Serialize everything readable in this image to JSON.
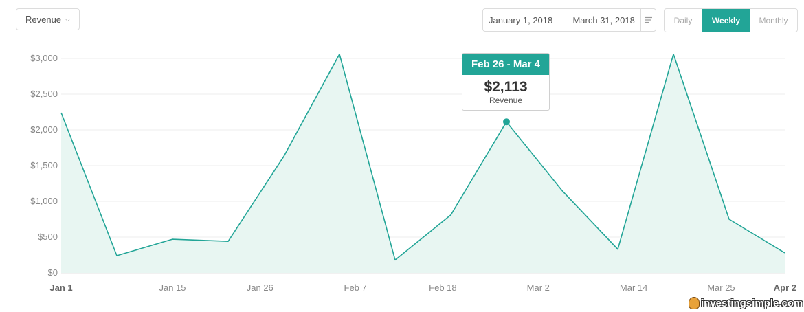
{
  "controls": {
    "metric_label": "Revenue",
    "date_start": "January 1, 2018",
    "date_separator": "–",
    "date_end": "March 31, 2018",
    "granularity": [
      "Daily",
      "Weekly",
      "Monthly"
    ],
    "selected_granularity": "Weekly"
  },
  "tooltip": {
    "period": "Feb 26 - Mar 4",
    "value": "$2,113",
    "label": "Revenue"
  },
  "watermark": "investingsimple.com",
  "colors": {
    "accent": "#22a597",
    "area_fill": "#e8f6f2",
    "grid": "#eeeeee",
    "axis_text": "#888888"
  },
  "chart_data": {
    "type": "area",
    "ylim": [
      0,
      3000
    ],
    "yticks": [
      0,
      500,
      1000,
      1500,
      2000,
      2500,
      3000
    ],
    "ytick_labels": [
      "$0",
      "$500",
      "$1,000",
      "$1,500",
      "$2,000",
      "$2,500",
      "$3,000"
    ],
    "xticks": [
      {
        "label": "Jan 1",
        "day": 0,
        "bold": true
      },
      {
        "label": "Jan 15",
        "day": 14,
        "bold": false
      },
      {
        "label": "Jan 26",
        "day": 25,
        "bold": false
      },
      {
        "label": "Feb 7",
        "day": 37,
        "bold": false
      },
      {
        "label": "Feb 18",
        "day": 48,
        "bold": false
      },
      {
        "label": "Mar 2",
        "day": 60,
        "bold": false
      },
      {
        "label": "Mar 14",
        "day": 72,
        "bold": false
      },
      {
        "label": "Mar 25",
        "day": 83,
        "bold": false
      },
      {
        "label": "Apr 2",
        "day": 91,
        "bold": true
      }
    ],
    "series": [
      {
        "x": [
          0,
          7,
          14,
          21,
          28,
          35,
          42,
          49,
          56,
          63,
          70,
          77,
          84,
          91
        ],
        "values": [
          2240,
          240,
          470,
          440,
          1630,
          3060,
          180,
          810,
          2113,
          1150,
          330,
          3060,
          750,
          280
        ]
      }
    ],
    "highlight_index": 8,
    "grid": true
  }
}
